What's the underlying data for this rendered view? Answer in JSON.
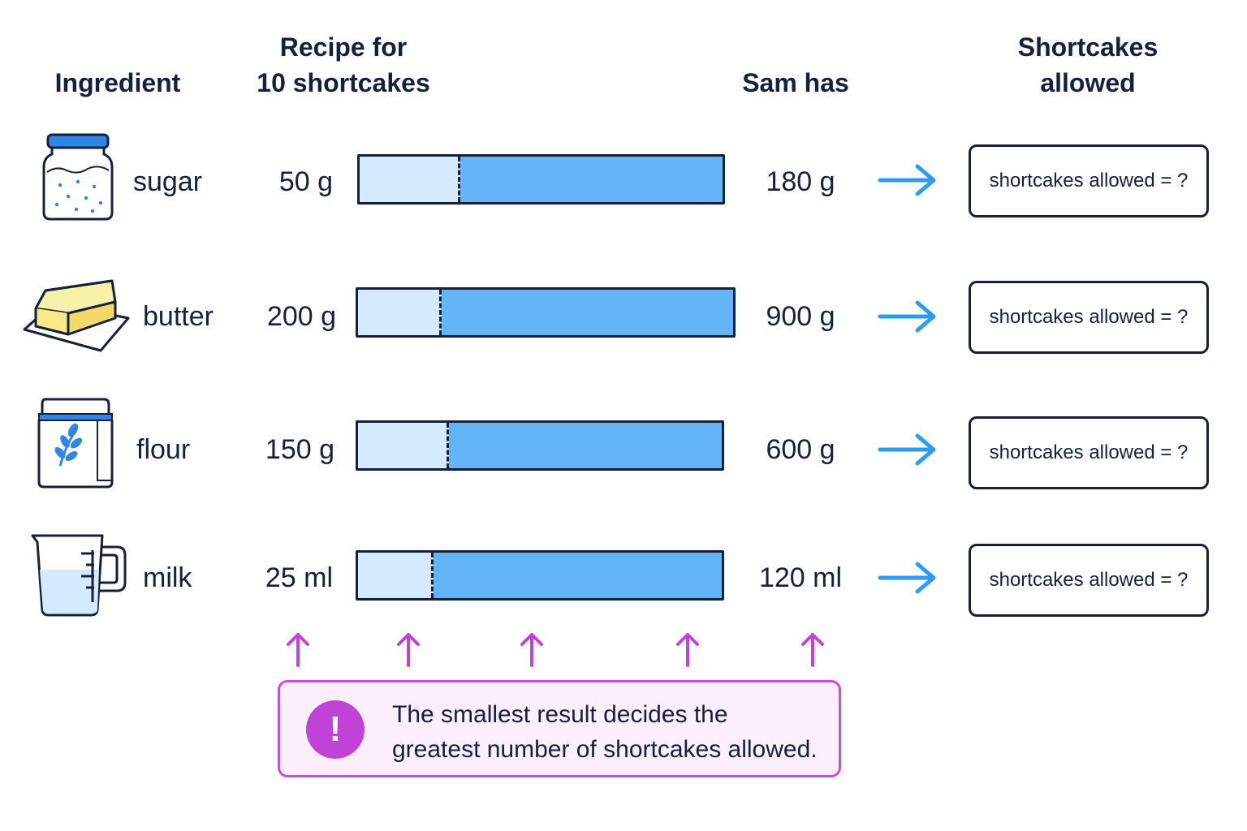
{
  "headers": {
    "ingredient": "Ingredient",
    "recipe": "Recipe for\n10 shortcakes",
    "sam_has": "Sam has",
    "allowed": "Shortcakes\nallowed"
  },
  "rows": [
    {
      "name": "sugar",
      "icon": "sugar-jar-icon",
      "recipe": "50 g",
      "recipe_value": 50,
      "have": "180 g",
      "have_value": 180,
      "result": "shortcakes allowed = ?"
    },
    {
      "name": "butter",
      "icon": "butter-icon",
      "recipe": "200 g",
      "recipe_value": 200,
      "have": "900 g",
      "have_value": 900,
      "result": "shortcakes allowed = ?"
    },
    {
      "name": "flour",
      "icon": "flour-bag-icon",
      "recipe": "150 g",
      "recipe_value": 150,
      "have": "600 g",
      "have_value": 600,
      "result": "shortcakes allowed = ?"
    },
    {
      "name": "milk",
      "icon": "measuring-jug-icon",
      "recipe": "25 ml",
      "recipe_value": 25,
      "have": "120 ml",
      "have_value": 120,
      "result": "shortcakes allowed = ?"
    }
  ],
  "note": {
    "icon": "exclamation-icon",
    "text": "The smallest result decides the\ngreatest number of shortcakes allowed."
  },
  "colors": {
    "bar_fill": "#64b5f8",
    "bar_part": "#d5eafc",
    "arrow": "#2f9bf0",
    "note_accent": "#c142d6"
  }
}
